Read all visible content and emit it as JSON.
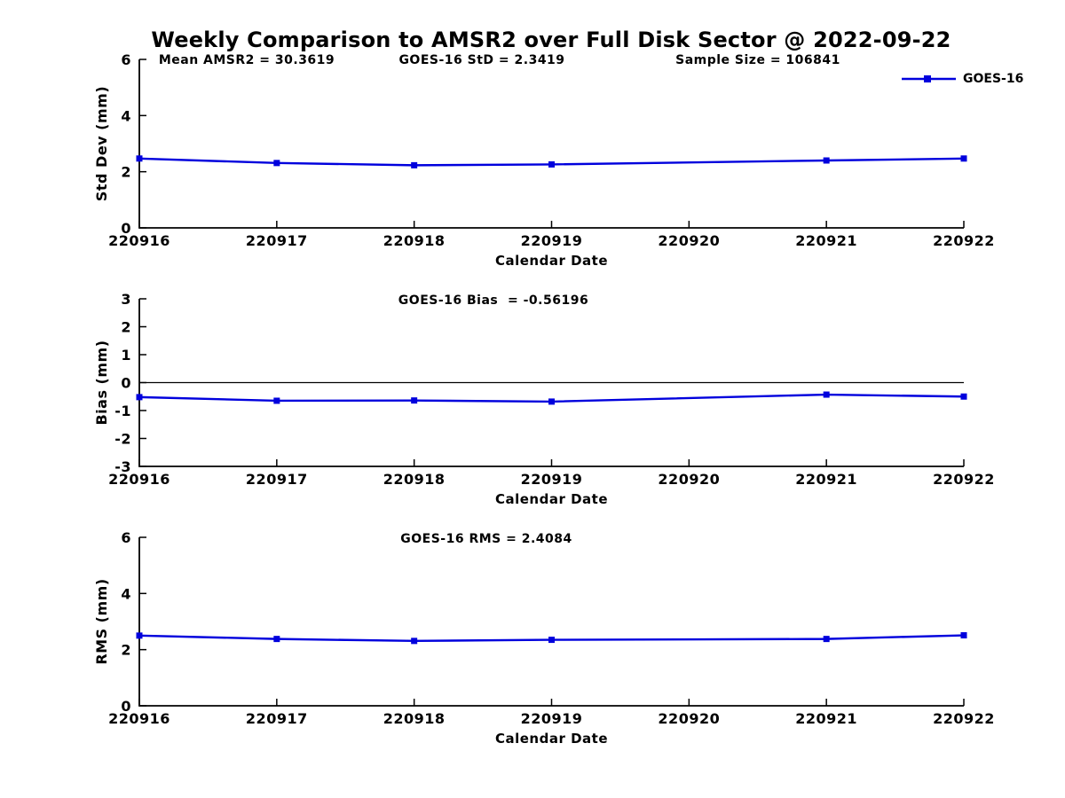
{
  "page": {
    "title": "Weekly Comparison to AMSR2 over Full Disk Sector @ 2022-09-22",
    "background": "#ffffff"
  },
  "legend": {
    "label": "GOES-16",
    "line_color": "#0000dd",
    "marker": "filled-square"
  },
  "style": {
    "line_color": "#0000dd",
    "axis_color": "#000000",
    "zero_line_color": "#000000",
    "text_color": "#000000"
  },
  "chart_data": [
    {
      "type": "line",
      "name": "std-dev-vs-date",
      "ylabel": "Std Dev (mm)",
      "xlabel": "Calendar Date",
      "ylim": [
        0,
        6
      ],
      "yticks": [
        "0",
        "2",
        "4",
        "6"
      ],
      "ytick_values": [
        0,
        2,
        4,
        6
      ],
      "xticks": [
        "220916",
        "220917",
        "220918",
        "220919",
        "220920",
        "220921",
        "220922"
      ],
      "xtick_values": [
        220916,
        220917,
        220918,
        220919,
        220920,
        220921,
        220922
      ],
      "xlim": [
        220916,
        220922
      ],
      "x": [
        220916,
        220917,
        220918,
        220919,
        220921,
        220922
      ],
      "series": [
        {
          "name": "GOES-16",
          "values": [
            2.47,
            2.31,
            2.23,
            2.26,
            2.4,
            2.47
          ]
        }
      ],
      "annotations": [
        "Mean AMSR2 = 30.3619",
        "GOES-16 StD = 2.3419",
        "Sample Size = 106841"
      ],
      "zero_line": false,
      "grid": false,
      "legend_position": "top-right-outside"
    },
    {
      "type": "line",
      "name": "bias-vs-date",
      "ylabel": "Bias (mm)",
      "xlabel": "Calendar Date",
      "ylim": [
        -3,
        3
      ],
      "yticks": [
        "-3",
        "-2",
        "-1",
        "0",
        "1",
        "2",
        "3"
      ],
      "ytick_values": [
        -3,
        -2,
        -1,
        0,
        1,
        2,
        3
      ],
      "xticks": [
        "220916",
        "220917",
        "220918",
        "220919",
        "220920",
        "220921",
        "220922"
      ],
      "xtick_values": [
        220916,
        220917,
        220918,
        220919,
        220920,
        220921,
        220922
      ],
      "xlim": [
        220916,
        220922
      ],
      "x": [
        220916,
        220917,
        220918,
        220919,
        220921,
        220922
      ],
      "series": [
        {
          "name": "GOES-16",
          "values": [
            -0.52,
            -0.65,
            -0.64,
            -0.68,
            -0.43,
            -0.5
          ]
        }
      ],
      "annotations": [
        "GOES-16 Bias  = -0.56196"
      ],
      "zero_line": true,
      "grid": false
    },
    {
      "type": "line",
      "name": "rms-vs-date",
      "ylabel": "RMS (mm)",
      "xlabel": "Calendar Date",
      "ylim": [
        0,
        6
      ],
      "yticks": [
        "0",
        "2",
        "4",
        "6"
      ],
      "ytick_values": [
        0,
        2,
        4,
        6
      ],
      "xticks": [
        "220916",
        "220917",
        "220918",
        "220919",
        "220920",
        "220921",
        "220922"
      ],
      "xtick_values": [
        220916,
        220917,
        220918,
        220919,
        220920,
        220921,
        220922
      ],
      "xlim": [
        220916,
        220922
      ],
      "x": [
        220916,
        220917,
        220918,
        220919,
        220921,
        220922
      ],
      "series": [
        {
          "name": "GOES-16",
          "values": [
            2.5,
            2.38,
            2.31,
            2.35,
            2.38,
            2.51
          ]
        }
      ],
      "annotations": [
        "GOES-16 RMS = 2.4084"
      ],
      "zero_line": false,
      "grid": false
    }
  ]
}
